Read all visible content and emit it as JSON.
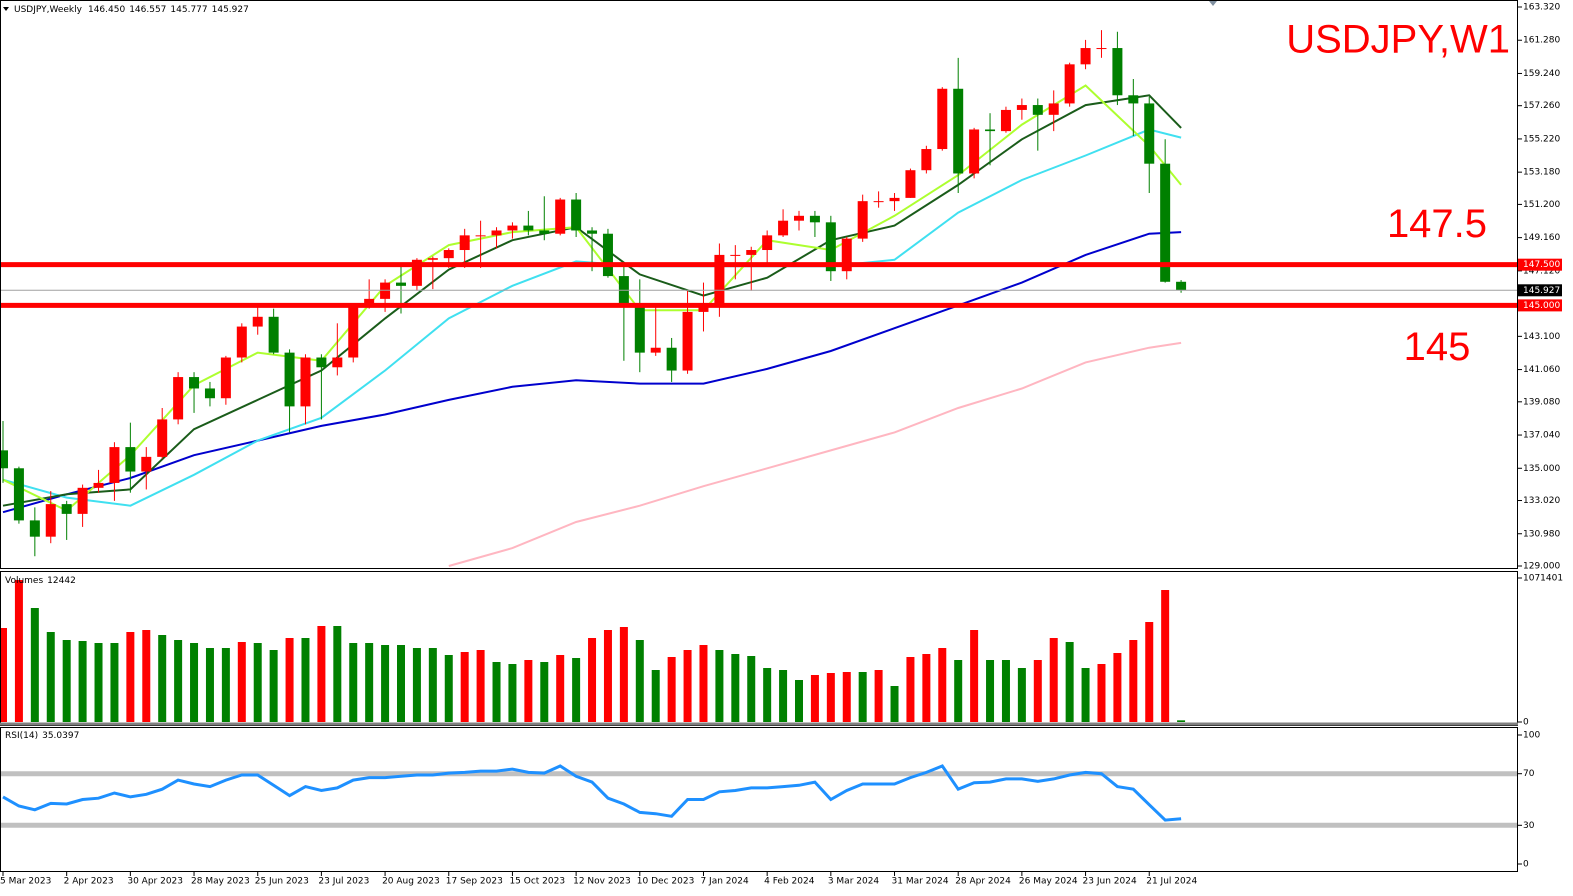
{
  "chart_data": [
    {
      "type": "candlestick",
      "title": "USDJPY,Weekly",
      "annotation": "USDJPY,W1",
      "categories": [
        "5 Mar 2023",
        null,
        null,
        null,
        "2 Apr 2023",
        null,
        null,
        null,
        "30 Apr 2023",
        null,
        null,
        null,
        "28 May 2023",
        null,
        null,
        null,
        "25 Jun 2023",
        null,
        null,
        null,
        "23 Jul 2023",
        null,
        null,
        null,
        "20 Aug 2023",
        null,
        null,
        null,
        "17 Sep 2023",
        null,
        null,
        null,
        "15 Oct 2023",
        null,
        null,
        null,
        "12 Nov 2023",
        null,
        null,
        null,
        "10 Dec 2023",
        null,
        null,
        null,
        "7 Jan 2024",
        null,
        null,
        null,
        "4 Feb 2024",
        null,
        null,
        null,
        "3 Mar 2024",
        null,
        null,
        null,
        "31 Mar 2024",
        null,
        null,
        null,
        "28 Apr 2024",
        null,
        null,
        null,
        "26 May 2024",
        null,
        null,
        null,
        "23 Jun 2024",
        null,
        null,
        null,
        "21 Jul 2024",
        null,
        null
      ],
      "open": [
        136.1,
        135.0,
        131.8,
        130.8,
        132.8,
        132.2,
        133.8,
        134.1,
        136.3,
        134.8,
        135.7,
        138.0,
        140.6,
        139.9,
        139.3,
        141.8,
        143.7,
        144.3,
        142.1,
        138.8,
        141.8,
        141.2,
        141.8,
        144.9,
        145.4,
        146.4,
        146.2,
        147.8,
        147.9,
        148.4,
        149.3,
        149.3,
        149.6,
        149.9,
        149.6,
        149.4,
        151.5,
        149.6,
        149.4,
        146.8,
        144.9,
        142.1,
        142.4,
        141.0,
        144.6,
        145.0,
        148.1,
        148.1,
        148.4,
        149.3,
        150.2,
        150.5,
        150.1,
        147.1,
        149.1,
        151.4,
        151.4,
        151.6,
        153.3,
        154.6,
        158.3,
        153.1,
        155.8,
        155.7,
        157.0,
        157.3,
        156.7,
        157.4,
        159.8,
        160.8,
        160.8,
        157.9,
        157.4,
        153.7,
        146.45
      ],
      "high": [
        137.9,
        135.1,
        132.6,
        133.6,
        133.0,
        134.0,
        134.9,
        136.6,
        137.8,
        136.3,
        138.7,
        140.9,
        140.9,
        140.3,
        141.9,
        143.9,
        145.0,
        144.8,
        142.3,
        142.0,
        142.0,
        143.9,
        144.9,
        146.6,
        146.6,
        147.4,
        147.9,
        148.0,
        148.5,
        149.7,
        150.2,
        149.8,
        150.1,
        150.8,
        151.7,
        151.6,
        151.9,
        149.8,
        149.7,
        147.4,
        146.6,
        144.9,
        143.0,
        145.9,
        146.4,
        148.8,
        148.7,
        148.6,
        149.6,
        150.9,
        150.8,
        150.8,
        150.5,
        149.2,
        151.8,
        152.0,
        151.9,
        153.4,
        154.8,
        158.4,
        160.2,
        155.9,
        156.8,
        157.2,
        157.7,
        157.7,
        158.2,
        159.9,
        161.3,
        161.9,
        161.8,
        158.9,
        157.8,
        155.2,
        146.557
      ],
      "low": [
        134.1,
        131.6,
        129.6,
        130.4,
        130.6,
        131.4,
        133.5,
        133.0,
        133.5,
        133.7,
        135.6,
        137.7,
        138.4,
        138.8,
        138.9,
        141.5,
        143.2,
        142.0,
        137.2,
        137.7,
        138.0,
        140.7,
        141.5,
        144.8,
        144.6,
        144.5,
        145.9,
        146.0,
        147.3,
        147.3,
        147.3,
        148.5,
        149.1,
        149.3,
        149.0,
        149.3,
        149.2,
        147.1,
        146.7,
        141.6,
        140.9,
        141.9,
        140.3,
        140.8,
        143.4,
        144.3,
        146.6,
        145.9,
        147.6,
        149.2,
        149.6,
        149.2,
        146.5,
        146.6,
        148.9,
        151.0,
        150.8,
        151.6,
        153.1,
        154.5,
        151.9,
        152.8,
        153.6,
        155.6,
        156.4,
        154.5,
        155.7,
        157.2,
        159.5,
        160.2,
        157.3,
        155.4,
        151.9,
        146.4,
        145.777
      ],
      "close": [
        135.0,
        131.8,
        130.8,
        132.8,
        132.2,
        133.8,
        134.1,
        136.3,
        134.8,
        135.7,
        138.0,
        140.6,
        139.9,
        139.3,
        141.8,
        143.7,
        144.3,
        142.1,
        138.8,
        141.8,
        141.2,
        141.8,
        144.9,
        145.4,
        146.4,
        146.2,
        147.8,
        147.9,
        148.4,
        149.3,
        149.3,
        149.6,
        149.9,
        149.6,
        149.4,
        151.5,
        149.6,
        149.4,
        146.8,
        144.9,
        142.1,
        142.4,
        141.0,
        144.6,
        145.0,
        148.1,
        148.1,
        148.4,
        149.3,
        150.2,
        150.5,
        150.1,
        147.1,
        149.1,
        151.4,
        151.4,
        151.6,
        153.3,
        154.6,
        158.3,
        153.1,
        155.8,
        155.7,
        157.0,
        157.3,
        156.7,
        157.4,
        159.8,
        160.8,
        160.8,
        157.9,
        157.4,
        153.7,
        146.45,
        145.927
      ],
      "open_label": "146.450",
      "bull_color": "#ff0000",
      "bear_color": "#008000",
      "ylim": [
        129.0,
        163.32
      ],
      "yticks": [
        {
          "value": 163.32,
          "label": "163.320"
        },
        {
          "value": 161.28,
          "label": "161.280"
        },
        {
          "value": 159.24,
          "label": "159.240"
        },
        {
          "value": 157.26,
          "label": "157.260"
        },
        {
          "value": 155.22,
          "label": "155.220"
        },
        {
          "value": 153.18,
          "label": "153.180"
        },
        {
          "value": 151.2,
          "label": "151.200"
        },
        {
          "value": 149.16,
          "label": "149.160"
        },
        {
          "value": 147.12,
          "label": "147.120"
        },
        {
          "value": 143.1,
          "label": "143.100"
        },
        {
          "value": 141.06,
          "label": "141.060"
        },
        {
          "value": 139.08,
          "label": "139.080"
        },
        {
          "value": 137.04,
          "label": "137.040"
        },
        {
          "value": 135.0,
          "label": "135.000"
        },
        {
          "value": 133.02,
          "label": "133.020"
        },
        {
          "value": 130.98,
          "label": "130.980"
        },
        {
          "value": 129.0,
          "label": "129.000"
        }
      ],
      "moving_averages": [
        {
          "color": "#ffb6c1",
          "x": [
            28,
            32,
            36,
            40,
            44,
            48,
            52,
            56,
            60,
            64,
            68,
            72,
            74
          ],
          "values": [
            129.0,
            130.1,
            131.7,
            132.7,
            133.9,
            135.0,
            136.1,
            137.2,
            138.7,
            139.9,
            141.5,
            142.4,
            142.7
          ]
        },
        {
          "color": "#0000cd",
          "x": [
            0,
            4,
            8,
            12,
            16,
            20,
            24,
            28,
            32,
            36,
            40,
            44,
            48,
            52,
            56,
            60,
            64,
            68,
            72,
            74
          ],
          "values": [
            132.3,
            133.4,
            134.4,
            135.8,
            136.7,
            137.6,
            138.3,
            139.2,
            140.0,
            140.4,
            140.2,
            140.2,
            141.1,
            142.2,
            143.6,
            145.0,
            146.4,
            148.1,
            149.4,
            149.5
          ]
        },
        {
          "color": "#40e0f0",
          "x": [
            0,
            4,
            8,
            12,
            16,
            20,
            24,
            28,
            32,
            36,
            40,
            44,
            48,
            52,
            56,
            60,
            64,
            68,
            72,
            74
          ],
          "values": [
            134.3,
            133.2,
            132.7,
            134.6,
            136.7,
            138.1,
            141.0,
            144.2,
            146.2,
            147.7,
            147.4,
            147.4,
            147.4,
            147.4,
            147.8,
            150.7,
            152.7,
            154.2,
            155.8,
            155.3
          ]
        },
        {
          "color": "#1a5c1a",
          "x": [
            0,
            4,
            8,
            12,
            16,
            20,
            24,
            28,
            32,
            36,
            40,
            44,
            48,
            52,
            56,
            60,
            64,
            68,
            72,
            74
          ],
          "values": [
            132.7,
            133.4,
            133.7,
            137.4,
            139.2,
            141.0,
            144.2,
            147.2,
            149.0,
            149.8,
            146.9,
            145.6,
            146.7,
            149.0,
            149.9,
            152.4,
            155.2,
            157.3,
            157.9,
            155.9
          ]
        },
        {
          "color": "#adff2f",
          "x": [
            0,
            4,
            8,
            12,
            16,
            20,
            24,
            28,
            32,
            36,
            40,
            44,
            48,
            52,
            56,
            60,
            64,
            68,
            72,
            74
          ],
          "values": [
            134.3,
            132.4,
            135.8,
            140.1,
            142.1,
            141.6,
            146.2,
            148.7,
            149.5,
            149.8,
            144.7,
            144.7,
            149.0,
            148.4,
            150.5,
            153.0,
            156.1,
            158.5,
            154.8,
            152.4
          ]
        }
      ],
      "levels": [
        {
          "value": 147.5,
          "label": "147.500",
          "annotation": "147.5",
          "color": "#ff0000"
        },
        {
          "value": 145.0,
          "label": "145.000",
          "annotation": "145",
          "color": "#ff0000"
        }
      ]
    },
    {
      "type": "bar",
      "title": "Volumes",
      "up_color": "#ff0000",
      "down_color": "#008000",
      "values": [
        699360,
        1056480,
        848160,
        669600,
        610080,
        602640,
        587760,
        587760,
        669600,
        684480,
        647280,
        610080,
        587760,
        550560,
        550560,
        595200,
        587760,
        535680,
        624960,
        624960,
        714240,
        714240,
        587760,
        587760,
        572880,
        572880,
        550560,
        550560,
        498480,
        520800,
        535680,
        446400,
        431520,
        461280,
        446400,
        498480,
        476160,
        624960,
        684480,
        706800,
        610080,
        386880,
        483600,
        535680,
        572880,
        535680,
        505920,
        491040,
        401760,
        386880,
        312480,
        349680,
        364560,
        372000,
        372000,
        386880,
        267840,
        483600,
        505920,
        550560,
        461280,
        684480,
        461280,
        461280,
        401760,
        461280,
        624960,
        595200,
        401760,
        431520,
        513360,
        610080,
        744000,
        982080,
        12442
      ],
      "ylim": [
        0,
        1071401
      ],
      "yticks": [
        0,
        1071401
      ]
    },
    {
      "type": "line",
      "title": "RSI(14)",
      "color": "#1e90ff",
      "values": [
        52,
        45,
        42,
        47,
        46.5,
        50,
        51,
        55,
        52,
        54,
        58,
        65,
        62,
        60,
        65,
        69,
        69,
        61,
        53,
        60,
        57,
        59,
        65,
        67,
        67,
        68,
        69,
        69,
        70.5,
        71,
        72,
        72,
        73.6,
        71,
        70.5,
        76,
        68,
        63.5,
        51,
        46.5,
        40,
        39,
        37,
        50,
        50,
        56,
        57,
        59,
        59,
        60,
        61,
        63.5,
        50,
        57,
        62,
        62,
        62,
        67,
        71,
        76,
        58,
        63,
        63.5,
        66,
        66,
        64,
        66,
        69,
        71,
        70,
        60,
        58,
        46,
        34,
        35.0397
      ],
      "ylim": [
        0,
        100
      ],
      "yticks": [
        0,
        30,
        70,
        100
      ],
      "levels": [
        70,
        30
      ],
      "level_color": "#c0c0c0"
    }
  ]
}
